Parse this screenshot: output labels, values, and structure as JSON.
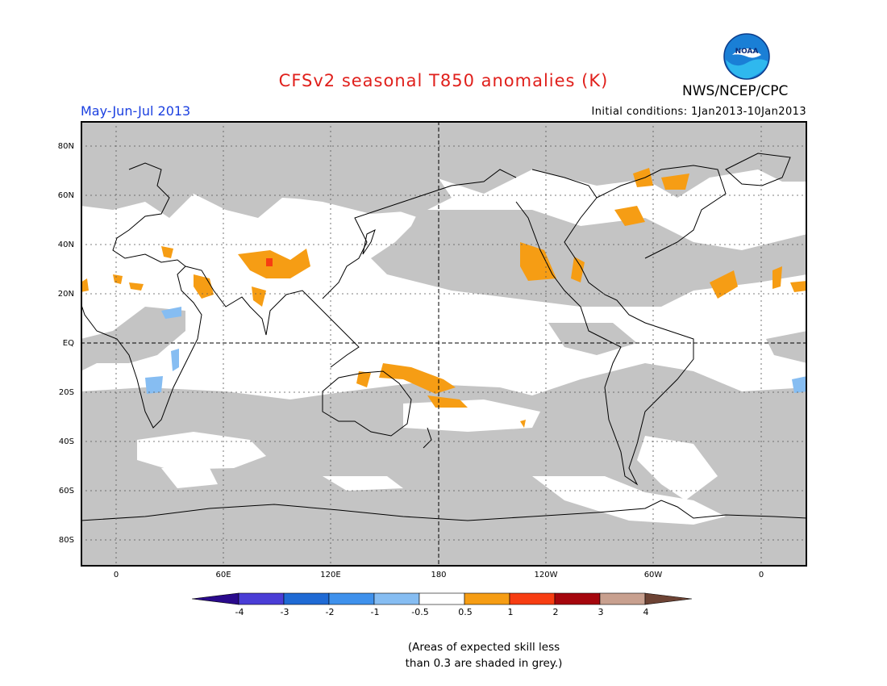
{
  "header": {
    "title": "CFSv2 seasonal T850 anomalies (K)",
    "org": "NWS/NCEP/CPC",
    "period": "May-Jun-Jul 2013",
    "initial_conditions": "Initial conditions: 1Jan2013-10Jan2013",
    "logo_text": "NOAA"
  },
  "map": {
    "lat_labels": [
      "80N",
      "60N",
      "40N",
      "20N",
      "EQ",
      "20S",
      "40S",
      "60S",
      "80S"
    ],
    "lon_labels": [
      "0",
      "60E",
      "120E",
      "180",
      "120W",
      "60W",
      "0"
    ]
  },
  "colorbar": {
    "labels": [
      "-4",
      "-3",
      "-2",
      "-1",
      "-0.5",
      "0.5",
      "1",
      "2",
      "3",
      "4"
    ],
    "colors": [
      "#2a0a8c",
      "#4a3dd6",
      "#1f6ad4",
      "#3f91ec",
      "#86bdf2",
      "#ffffff",
      "#f69d14",
      "#f73d12",
      "#a5060d",
      "#c8a08f",
      "#6d4334"
    ]
  },
  "note": {
    "line1": "(Areas of expected skill less",
    "line2": "than 0.3 are shaded in grey.)"
  }
}
